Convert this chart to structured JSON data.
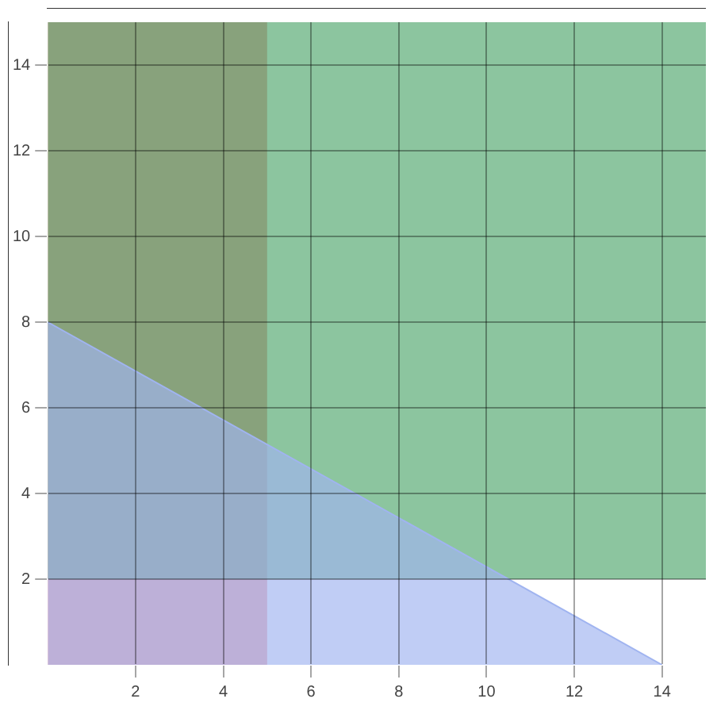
{
  "chart_data": {
    "type": "area",
    "series": [
      {
        "color": "#a0b4f0",
        "x": [
          0,
          14
        ],
        "values": [
          8,
          0
        ]
      }
    ],
    "bands": [
      {
        "axis": "x",
        "from": 0,
        "to": 5,
        "color": "#f07070"
      },
      {
        "axis": "y",
        "from": 2,
        "to": 15,
        "color": "#3f9f5f"
      }
    ],
    "xlim": [
      0,
      15
    ],
    "xticks": [
      2,
      4,
      6,
      8,
      10,
      12,
      14
    ],
    "ylim": [
      0,
      15
    ],
    "yticks": [
      2,
      4,
      6,
      8,
      10,
      12,
      14
    ],
    "grid": true,
    "legend": false
  }
}
